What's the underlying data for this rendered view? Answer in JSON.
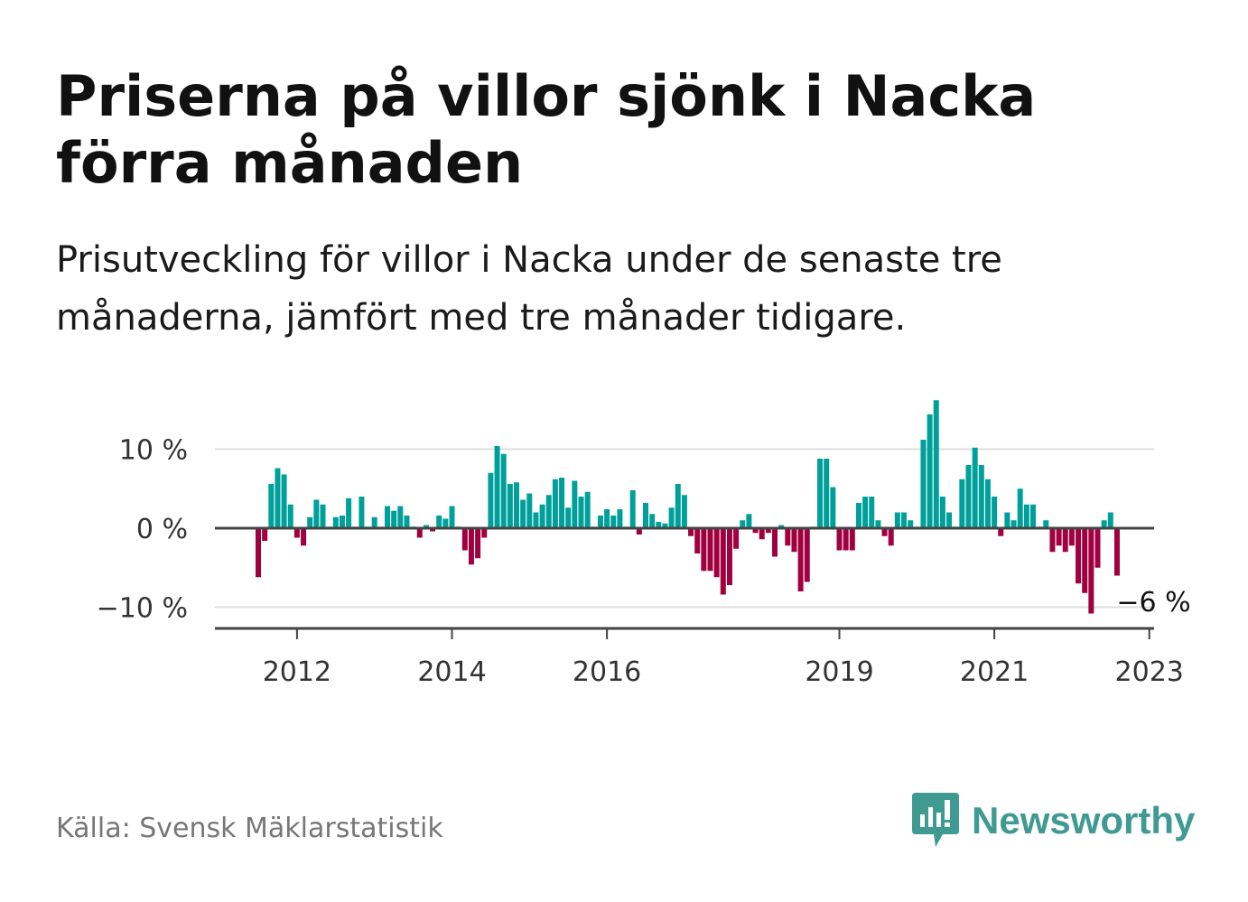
{
  "title": "Priserna på villor sjönk i Nacka förra månaden",
  "subtitle": "Prisutveckling för villor i Nacka under de senaste tre månaderna, jämfört med tre månader tidigare.",
  "source": "Källa: Svensk Mäklarstatistik",
  "brand": {
    "name": "Newsworthy",
    "icon": "newsworthy-logo-icon",
    "color": "#3f9b92"
  },
  "chart_data": {
    "type": "bar",
    "start": "2011-07",
    "frequency": "monthly",
    "ylim": [
      -13,
      17
    ],
    "yticks": [
      {
        "value": 10,
        "label": "10 %"
      },
      {
        "value": 0,
        "label": "0 %"
      },
      {
        "value": -10,
        "label": "−10 %"
      }
    ],
    "xticks": [
      {
        "date": "2012-01",
        "label": "2012"
      },
      {
        "date": "2014-01",
        "label": "2014"
      },
      {
        "date": "2016-01",
        "label": "2016"
      },
      {
        "date": "2019-01",
        "label": "2019"
      },
      {
        "date": "2021-01",
        "label": "2021"
      },
      {
        "date": "2023-01",
        "label": "2023"
      }
    ],
    "grid": true,
    "colors": {
      "positive": "#00a09a",
      "negative": "#a00040",
      "grid": "#dddddd",
      "axis": "#444444"
    },
    "annotation": {
      "label": "−6 %",
      "value": -6,
      "date": "2023-01"
    },
    "values": [
      -6.2,
      -1.6,
      5.6,
      7.6,
      6.8,
      3.0,
      -1.2,
      -2.2,
      1.4,
      3.6,
      3.0,
      0.2,
      1.4,
      1.6,
      3.8,
      0.2,
      4.0,
      0.2,
      1.4,
      0.2,
      2.8,
      2.2,
      2.8,
      1.6,
      0.2,
      -1.2,
      0.4,
      -0.4,
      1.6,
      1.2,
      2.8,
      0.2,
      -2.8,
      -4.6,
      -3.8,
      -1.2,
      7.0,
      10.4,
      9.4,
      5.6,
      5.8,
      3.6,
      4.4,
      2.0,
      3.0,
      4.2,
      6.2,
      6.4,
      2.6,
      6.0,
      4.0,
      4.6,
      0.2,
      1.6,
      2.4,
      1.6,
      2.4,
      0.2,
      4.8,
      -0.8,
      3.2,
      1.8,
      0.8,
      0.6,
      2.6,
      5.6,
      4.2,
      -1.0,
      -3.2,
      -5.4,
      -5.4,
      -6.2,
      -8.4,
      -7.2,
      -2.6,
      1.0,
      1.8,
      -0.6,
      -1.4,
      -0.6,
      -3.6,
      0.4,
      -2.2,
      -3.0,
      -8.0,
      -6.8,
      0.2,
      8.8,
      8.8,
      5.2,
      -2.8,
      -2.8,
      -2.8,
      3.2,
      4.0,
      4.0,
      1.0,
      -1.0,
      -2.2,
      2.0,
      2.0,
      1.0,
      0.2,
      11.2,
      14.4,
      16.2,
      4.0,
      2.0,
      0.2,
      6.2,
      8.0,
      10.2,
      8.0,
      6.2,
      4.0,
      -1.0,
      2.0,
      1.0,
      5.0,
      3.0,
      3.0,
      0.2,
      1.0,
      -3.0,
      -2.2,
      -3.0,
      -2.2,
      -7.0,
      -8.2,
      -10.8,
      -5.0,
      1.0,
      2.0,
      -6.0
    ]
  }
}
